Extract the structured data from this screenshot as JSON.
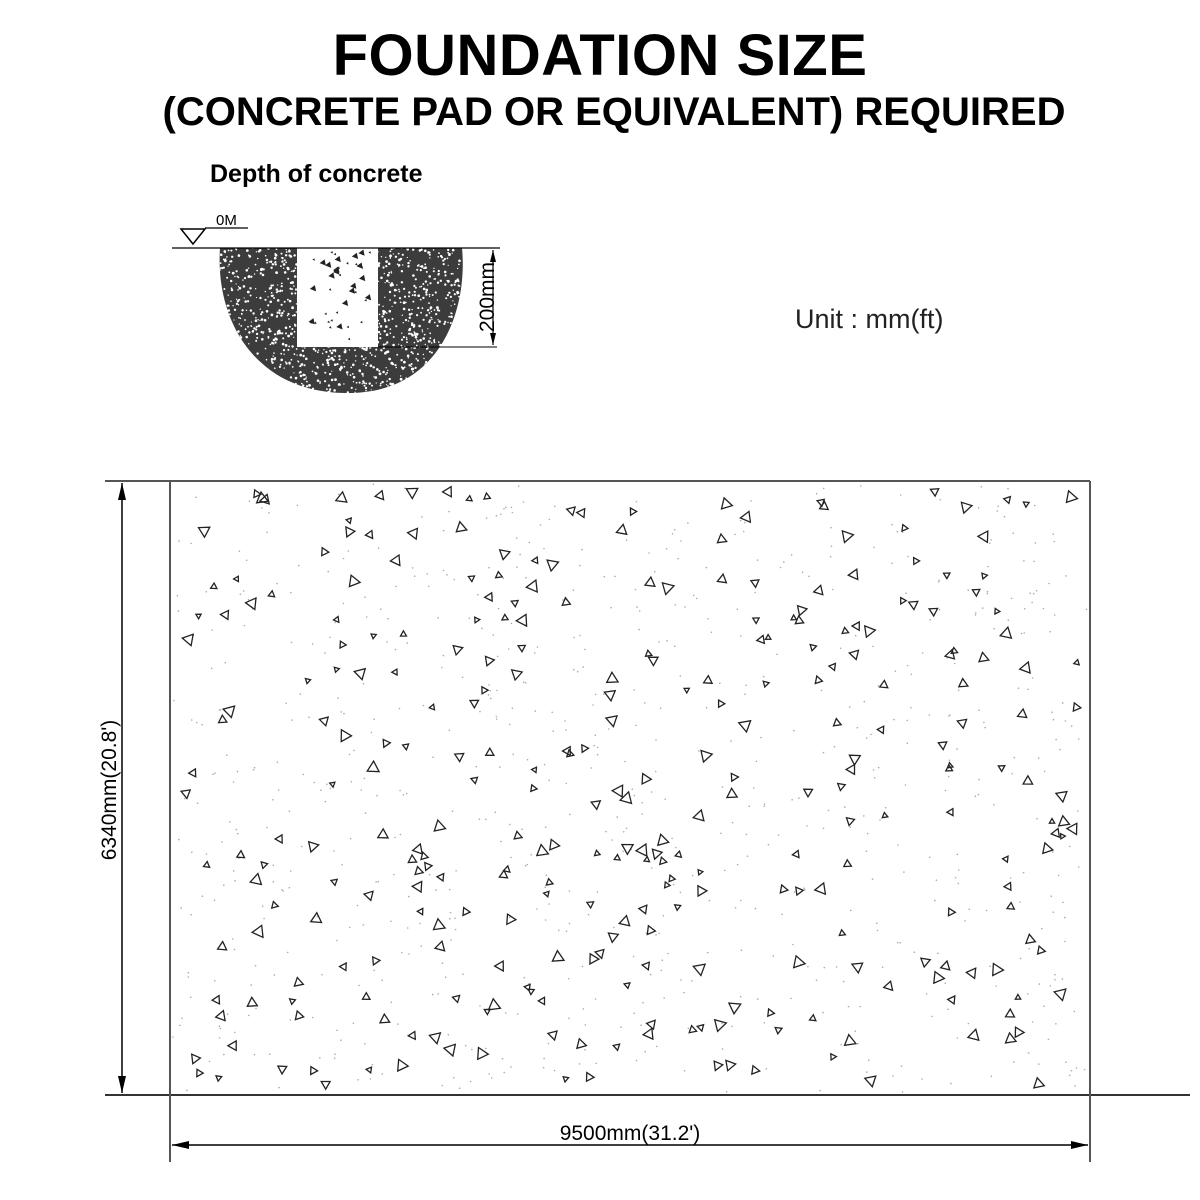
{
  "title": "FOUNDATION SIZE",
  "subtitle": "(CONCRETE PAD OR EQUIVALENT) REQUIRED",
  "section": {
    "heading": "Depth of concrete",
    "level_label": "0M",
    "depth_label": "200mm"
  },
  "unit_label": "Unit : mm(ft)",
  "plan": {
    "height_label": "6340mm(20.8')",
    "width_label": "9500mm(31.2')"
  }
}
